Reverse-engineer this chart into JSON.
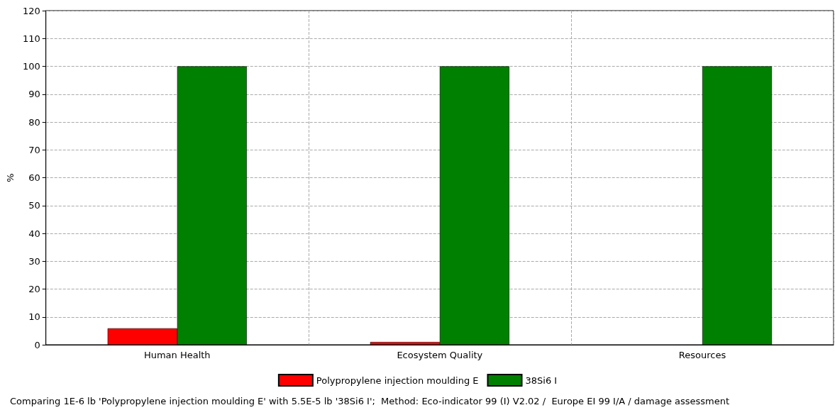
{
  "chart_data": {
    "type": "bar",
    "ylabel": "%",
    "categories": [
      "Human Health",
      "Ecosystem Quality",
      "Resources"
    ],
    "series": [
      {
        "name": "Polypropylene injection moulding E",
        "color": "#ff0000",
        "values": [
          5.9,
          1,
          null
        ]
      },
      {
        "name": "38Si6 I",
        "color": "#008000",
        "values": [
          100,
          100,
          100
        ]
      }
    ],
    "ylim": [
      0,
      120
    ],
    "yticks": [
      0,
      10,
      20,
      30,
      40,
      50,
      60,
      70,
      80,
      90,
      100,
      110,
      120
    ],
    "grid": true,
    "legend": "bottom",
    "annotations": [
      "Comparing 1E-6 lb 'Polypropylene injection moulding E' with 5.5E-5 lb '38Si6 I';  Method: Eco-indicator 99 (I) V2.02 /  Europe EI 99 I/A / damage assessment"
    ]
  }
}
